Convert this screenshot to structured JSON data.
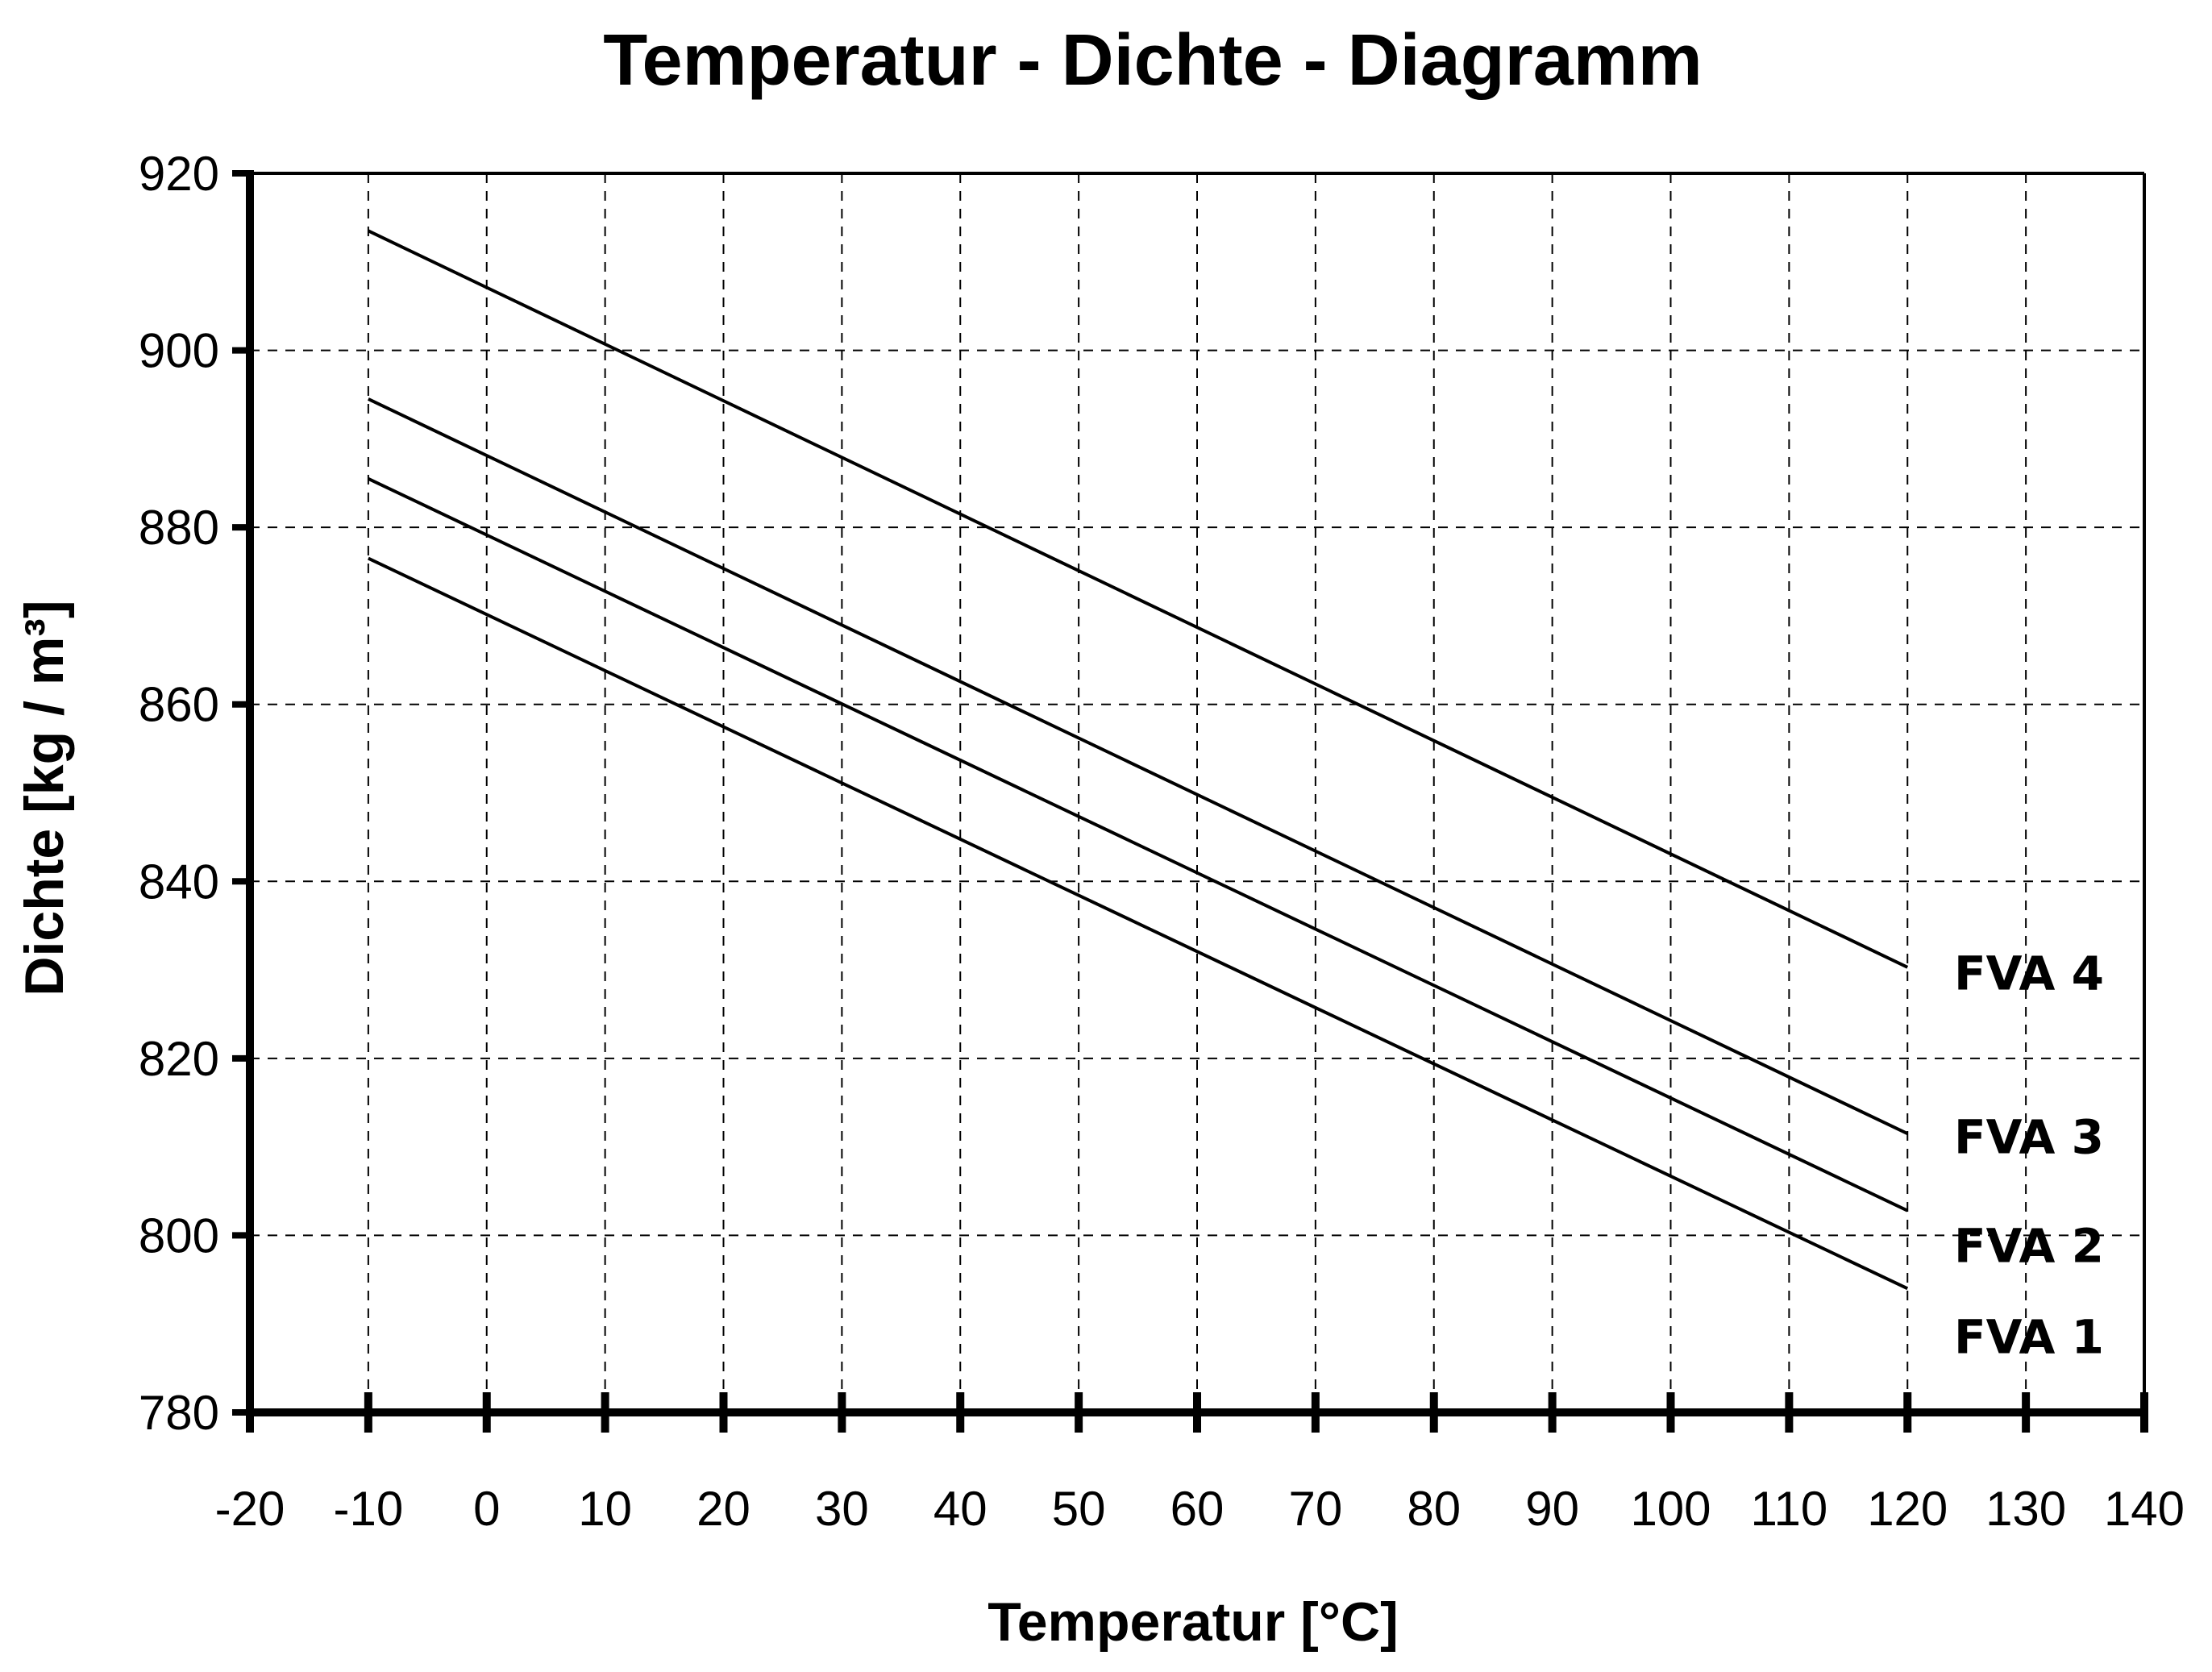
{
  "chart_data": {
    "type": "line",
    "title": "Temperatur - Dichte - Diagramm",
    "xlabel": "Temperatur  [°C]",
    "ylabel": "Dichte  [kg / m³]",
    "xlim": [
      -20,
      140
    ],
    "ylim": [
      780,
      920
    ],
    "xticks": [
      -20,
      -10,
      0,
      10,
      20,
      30,
      40,
      50,
      60,
      70,
      80,
      90,
      100,
      110,
      120,
      130,
      140
    ],
    "yticks": [
      780,
      800,
      820,
      840,
      860,
      880,
      900,
      920
    ],
    "grid": true,
    "legend": "labels at line ends (right)",
    "x": [
      -10,
      120
    ],
    "series": [
      {
        "name": "FVA 4",
        "values": [
          913.5,
          830.3
        ]
      },
      {
        "name": "FVA 3",
        "values": [
          894.5,
          811.5
        ]
      },
      {
        "name": "FVA 2",
        "values": [
          885.5,
          802.8
        ]
      },
      {
        "name": "FVA 1",
        "values": [
          876.5,
          794.0
        ]
      }
    ],
    "series_labels": [
      {
        "text": "FVA 4",
        "y": 829.6
      },
      {
        "text": "FVA 3",
        "y": 811.1
      },
      {
        "text": "FVA 2",
        "y": 798.8
      },
      {
        "text": "FVA 1",
        "y": 788.5
      }
    ],
    "colors": {
      "line": "#000000",
      "grid": "#000000",
      "background": "#ffffff"
    }
  }
}
